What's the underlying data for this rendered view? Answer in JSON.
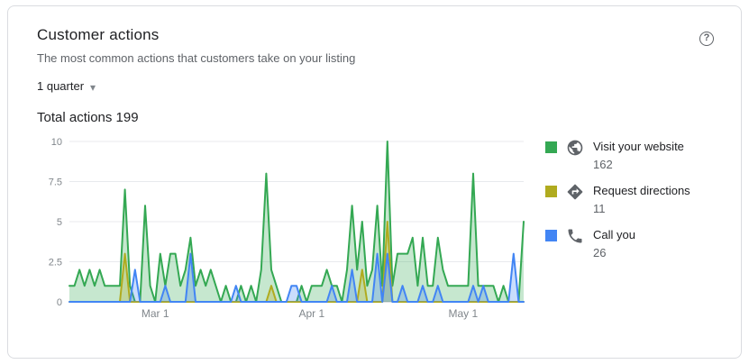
{
  "card": {
    "title": "Customer actions",
    "subtitle": "The most common actions that customers take on your listing",
    "period_selector": {
      "value": "1 quarter"
    },
    "total_label": "Total actions 199"
  },
  "icons": {
    "help_glyph": "?",
    "dropdown_caret": "▾"
  },
  "legend": {
    "items": [
      {
        "label": "Visit your website",
        "value": "162",
        "color": "#34a853",
        "icon": "globe-icon"
      },
      {
        "label": "Request directions",
        "value": "11",
        "color": "#b0ab1f",
        "icon": "directions-icon"
      },
      {
        "label": "Call you",
        "value": "26",
        "color": "#4285f4",
        "icon": "phone-icon"
      }
    ]
  },
  "chart_data": {
    "type": "area",
    "title": "Customer actions",
    "total_actions": 199,
    "ylim": [
      0,
      10
    ],
    "y_ticks": [
      0,
      2.5,
      5,
      7.5,
      10
    ],
    "x_ticks": [
      {
        "index": 17,
        "label": "Mar 1"
      },
      {
        "index": 48,
        "label": "Apr 1"
      },
      {
        "index": 78,
        "label": "May 1"
      }
    ],
    "grid": true,
    "legend_position": "right",
    "series": [
      {
        "name": "Visit your website",
        "color": "#34a853",
        "total": 162,
        "values": [
          1,
          1,
          2,
          1,
          2,
          1,
          2,
          1,
          1,
          1,
          1,
          7,
          1,
          0,
          0,
          6,
          1,
          0,
          3,
          1,
          3,
          3,
          1,
          2,
          4,
          1,
          2,
          1,
          2,
          1,
          0,
          1,
          0,
          0,
          1,
          0,
          1,
          0,
          2,
          8,
          2,
          1,
          0,
          0,
          0,
          0,
          1,
          0,
          1,
          1,
          1,
          2,
          1,
          1,
          0,
          2,
          6,
          2,
          5,
          1,
          2,
          6,
          1,
          10,
          1,
          3,
          3,
          3,
          4,
          1,
          4,
          1,
          1,
          4,
          2,
          1,
          1,
          1,
          1,
          1,
          8,
          1,
          1,
          1,
          1,
          0,
          1,
          0,
          0,
          0,
          5
        ]
      },
      {
        "name": "Request directions",
        "color": "#b0ab1f",
        "total": 11,
        "values": [
          0,
          0,
          0,
          0,
          0,
          0,
          0,
          0,
          0,
          0,
          0,
          3,
          0,
          0,
          0,
          0,
          0,
          0,
          0,
          0,
          0,
          0,
          0,
          0,
          0,
          0,
          0,
          0,
          0,
          0,
          0,
          0,
          0,
          0,
          0,
          0,
          0,
          0,
          0,
          0,
          1,
          0,
          0,
          0,
          0,
          0,
          0,
          0,
          0,
          0,
          0,
          0,
          0,
          0,
          0,
          0,
          0,
          0,
          2,
          0,
          0,
          0,
          0,
          5,
          0,
          0,
          0,
          0,
          0,
          0,
          0,
          0,
          0,
          0,
          0,
          0,
          0,
          0,
          0,
          0,
          0,
          0,
          0,
          0,
          0,
          0,
          0,
          0,
          0,
          0,
          0
        ]
      },
      {
        "name": "Call you",
        "color": "#4285f4",
        "total": 26,
        "values": [
          0,
          0,
          0,
          0,
          0,
          0,
          0,
          0,
          0,
          0,
          0,
          0,
          0,
          2,
          0,
          0,
          0,
          0,
          0,
          1,
          0,
          0,
          0,
          0,
          3,
          0,
          0,
          0,
          0,
          0,
          0,
          0,
          0,
          1,
          0,
          0,
          0,
          0,
          0,
          0,
          0,
          0,
          0,
          0,
          1,
          1,
          0,
          0,
          0,
          0,
          0,
          0,
          1,
          0,
          0,
          0,
          2,
          0,
          0,
          0,
          0,
          3,
          0,
          3,
          0,
          0,
          1,
          0,
          0,
          0,
          1,
          0,
          0,
          1,
          0,
          0,
          0,
          0,
          0,
          0,
          1,
          0,
          1,
          0,
          0,
          0,
          0,
          0,
          3,
          0,
          0
        ]
      }
    ]
  }
}
